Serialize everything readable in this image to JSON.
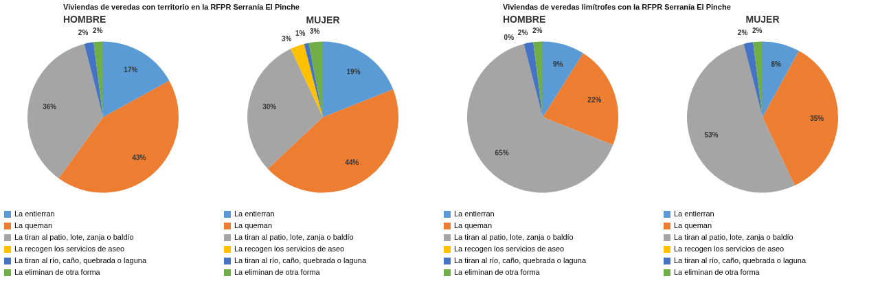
{
  "chart_data": [
    {
      "type": "pie",
      "title": "Viviendas de veredas con territorio en la RFPR Serranía El Pinche",
      "subtitle": "HOMBRE",
      "legend": "bottom",
      "categories": [
        "La entierran",
        "La queman",
        "La tiran al patio, lote, zanja o baldío",
        "La recogen los servicios de aseo",
        "La tiran al río, caño, quebrada o laguna",
        "La eliminan de otra forma"
      ],
      "colors": [
        "#5b9bd5",
        "#ed7d31",
        "#a5a5a5",
        "#ffc000",
        "#4472c4",
        "#70ad47"
      ],
      "values": [
        17,
        43,
        36,
        0,
        2,
        2
      ],
      "value_labels": [
        "17%",
        "43%",
        "36%",
        null,
        "2%",
        "2%"
      ]
    },
    {
      "type": "pie",
      "subtitle": "MUJER",
      "legend": "bottom",
      "categories": [
        "La entierran",
        "La queman",
        "La tiran al patio, lote, zanja o baldío",
        "La recogen los servicios de aseo",
        "La tiran al río, caño, quebrada o laguna",
        "La eliminan de otra forma"
      ],
      "colors": [
        "#5b9bd5",
        "#ed7d31",
        "#a5a5a5",
        "#ffc000",
        "#4472c4",
        "#70ad47"
      ],
      "values": [
        19,
        44,
        30,
        3,
        1,
        3
      ],
      "value_labels": [
        "19%",
        "44%",
        "30%",
        "3%",
        "1%",
        "3%"
      ]
    },
    {
      "type": "pie",
      "title": "Viviendas de veredas limítrofes con la RFPR Serranía El Pinche",
      "subtitle": "HOMBRE",
      "legend": "bottom",
      "categories": [
        "La entierran",
        "La queman",
        "La tiran al patio, lote, zanja o baldío",
        "La recogen los servicios de aseo",
        "La tiran al río, caño, quebrada o laguna",
        "La eliminan de otra forma"
      ],
      "colors": [
        "#5b9bd5",
        "#ed7d31",
        "#a5a5a5",
        "#ffc000",
        "#4472c4",
        "#70ad47"
      ],
      "values": [
        9,
        22,
        65,
        0,
        2,
        2
      ],
      "value_labels": [
        "9%",
        "22%",
        "65%",
        "0%",
        "2%",
        "2%"
      ]
    },
    {
      "type": "pie",
      "subtitle": "MUJER",
      "legend": "bottom",
      "categories": [
        "La entierran",
        "La queman",
        "La tiran al patio, lote, zanja o baldío",
        "La recogen los servicios de aseo",
        "La tiran al río, caño, quebrada o laguna",
        "La eliminan de otra forma"
      ],
      "colors": [
        "#5b9bd5",
        "#ed7d31",
        "#a5a5a5",
        "#ffc000",
        "#4472c4",
        "#70ad47"
      ],
      "values": [
        8,
        35,
        53,
        0,
        2,
        2
      ],
      "value_labels": [
        "8%",
        "35%",
        "53%",
        null,
        "2%",
        "2%"
      ]
    }
  ]
}
